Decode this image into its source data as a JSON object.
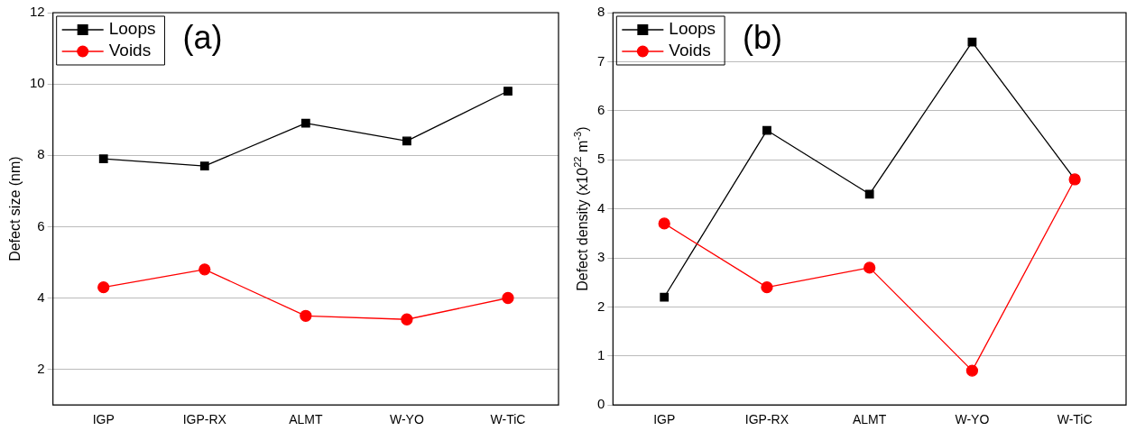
{
  "chart_data": [
    {
      "type": "line",
      "categories": [
        "IGP",
        "IGP-RX",
        "ALMT",
        "W-YO",
        "W-TiC"
      ],
      "ylabel": "Defect size (nm)",
      "ylim": [
        1,
        12
      ],
      "yticks": [
        2,
        4,
        6,
        8,
        10,
        12
      ],
      "grid": "y",
      "legend": "top left",
      "annotations": [
        "(a)"
      ],
      "series": [
        {
          "name": "Loops",
          "color": "#000000",
          "marker": "square",
          "values": [
            7.9,
            7.7,
            8.9,
            8.4,
            9.8
          ]
        },
        {
          "name": "Voids",
          "color": "#ff0000",
          "marker": "circle",
          "values": [
            4.3,
            4.8,
            3.5,
            3.4,
            4.0
          ]
        }
      ]
    },
    {
      "type": "line",
      "categories": [
        "IGP",
        "IGP-RX",
        "ALMT",
        "W-YO",
        "W-TiC"
      ],
      "ylabel": "Defect density (x10$^{22}$ m$^{-3}$)",
      "ylim": [
        0,
        8
      ],
      "yticks": [
        0,
        1,
        2,
        3,
        4,
        5,
        6,
        7,
        8
      ],
      "grid": "y",
      "legend": "top left",
      "annotations": [
        "(b)"
      ],
      "series": [
        {
          "name": "Loops",
          "color": "#000000",
          "marker": "square",
          "values": [
            2.2,
            5.6,
            4.3,
            7.4,
            4.6
          ]
        },
        {
          "name": "Voids",
          "color": "#ff0000",
          "marker": "circle",
          "values": [
            3.7,
            2.4,
            2.8,
            0.7,
            4.6
          ]
        }
      ]
    }
  ]
}
